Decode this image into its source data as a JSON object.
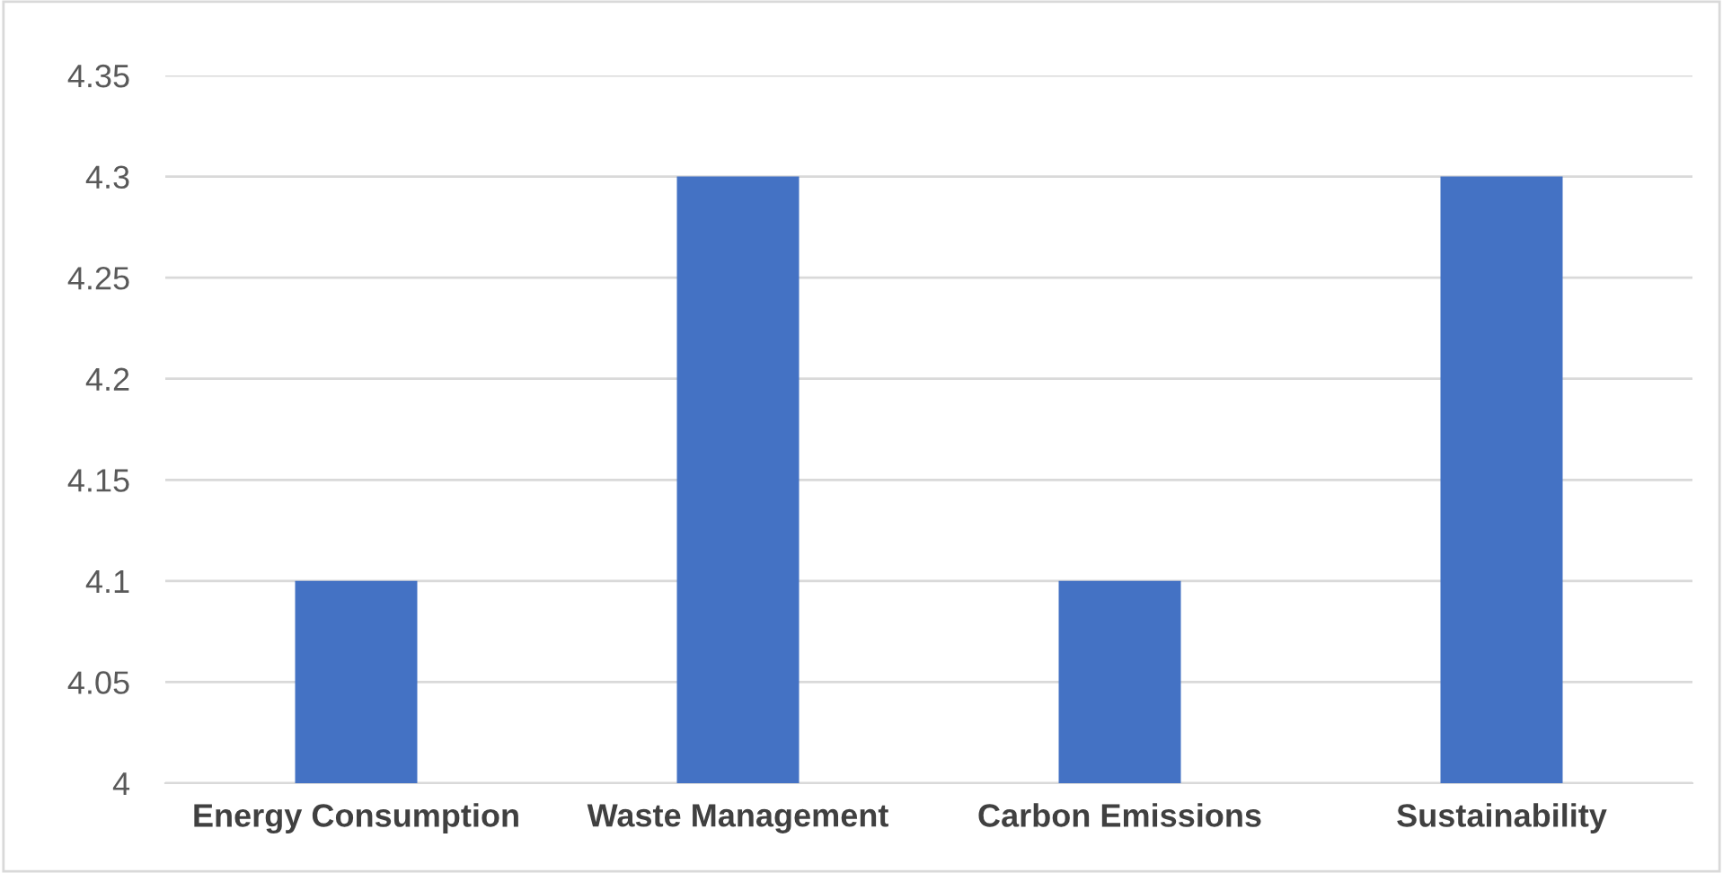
{
  "chart_data": {
    "type": "bar",
    "categories": [
      "Energy Consumption",
      "Waste Management",
      "Carbon Emissions",
      "Sustainability"
    ],
    "values": [
      4.1,
      4.3,
      4.1,
      4.3
    ],
    "color": "#4472c4",
    "ylim": [
      4,
      4.35
    ],
    "yticks": [
      4,
      4.05,
      4.1,
      4.15,
      4.2,
      4.25,
      4.3,
      4.35
    ],
    "grid": "y"
  }
}
